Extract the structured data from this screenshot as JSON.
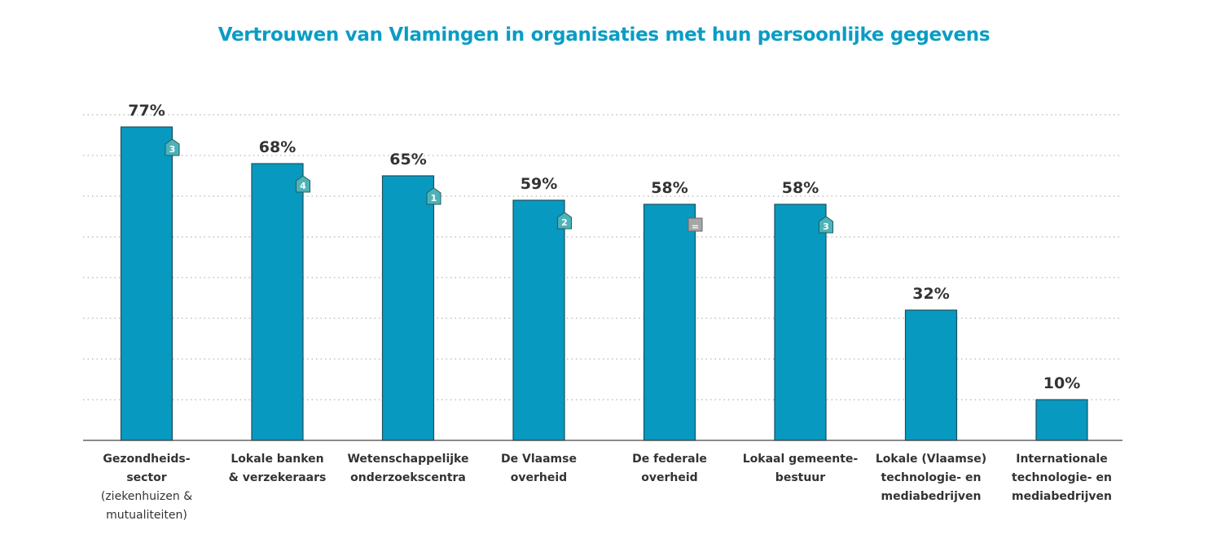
{
  "chart_data": {
    "type": "bar",
    "title": "Vertrouwen van Vlamingen in organisaties met hun persoonlijke gegevens",
    "xlabel": "",
    "ylabel": "",
    "ylim": [
      0,
      80
    ],
    "grid": true,
    "categories": [
      {
        "bold": "Gezondheids- sector",
        "lines": [
          "Gezondheids-",
          "sector"
        ],
        "sub": [
          "(ziekenhuizen &",
          "mutualiteiten)"
        ]
      },
      {
        "lines": [
          "Lokale banken",
          "& verzekeraars"
        ],
        "sub": []
      },
      {
        "lines": [
          "Wetenschappelijke",
          "onderzoekscentra"
        ],
        "sub": []
      },
      {
        "lines": [
          "De Vlaamse",
          "overheid"
        ],
        "sub": []
      },
      {
        "lines": [
          "De federale",
          "overheid"
        ],
        "sub": []
      },
      {
        "lines": [
          "Lokaal gemeente-",
          "bestuur"
        ],
        "sub": []
      },
      {
        "lines": [
          "Lokale (Vlaamse)",
          "technologie- en",
          "mediabedrijven"
        ],
        "sub": []
      },
      {
        "lines": [
          "Internationale",
          "technologie- en",
          "mediabedrijven"
        ],
        "sub": []
      }
    ],
    "values": [
      77,
      68,
      65,
      59,
      58,
      58,
      32,
      10
    ],
    "value_labels": [
      "77%",
      "68%",
      "65%",
      "59%",
      "58%",
      "58%",
      "32%",
      "10%"
    ],
    "rank_change_badges": [
      "3",
      "4",
      "1",
      "2",
      "=",
      "3",
      null,
      null
    ],
    "colors": {
      "bar": "#0799c0",
      "bar_outline": "#1d4f5e",
      "badge_up": "#4db3b8",
      "badge_same": "#a6a6a6",
      "title": "#0a9cc4",
      "text": "#333333"
    }
  }
}
